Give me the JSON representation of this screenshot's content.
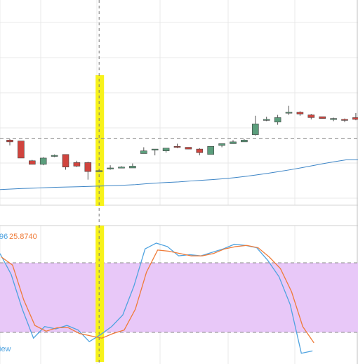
{
  "colors": {
    "bull": "#5b9e7c",
    "bear": "#d0443e",
    "ma": "#3d85c6",
    "k_line": "#4fa3e0",
    "d_line": "#ef7b38",
    "band_fill": "#e8c8f8",
    "highlight": "#f7f21a",
    "grid": "#e9e9e9",
    "dashed": "#8a8a8a"
  },
  "indicator": {
    "label_partial": "96",
    "label_value": "25.8740",
    "label_tail": "iew"
  },
  "chart_data": [
    {
      "type": "candlestick",
      "pane": "price",
      "title": "",
      "candles": [
        {
          "o": 130,
          "h": 131,
          "l": 124,
          "c": 128
        },
        {
          "o": 129,
          "h": 129,
          "l": 110,
          "c": 110
        },
        {
          "o": 107,
          "h": 108,
          "l": 103,
          "c": 103
        },
        {
          "o": 103,
          "h": 111,
          "l": 102,
          "c": 110
        },
        {
          "o": 113,
          "h": 114,
          "l": 111,
          "c": 113
        },
        {
          "o": 114,
          "h": 114,
          "l": 97,
          "c": 100
        },
        {
          "o": 105,
          "h": 107,
          "l": 100,
          "c": 101
        },
        {
          "o": 105,
          "h": 106,
          "l": 86,
          "c": 95
        },
        {
          "o": 95,
          "h": 97,
          "l": 95,
          "c": 96
        },
        {
          "o": 98,
          "h": 102,
          "l": 97,
          "c": 99
        },
        {
          "o": 99,
          "h": 101,
          "l": 99,
          "c": 100
        },
        {
          "o": 99,
          "h": 104,
          "l": 99,
          "c": 101
        },
        {
          "o": 115,
          "h": 122,
          "l": 115,
          "c": 118
        },
        {
          "o": 119,
          "h": 120,
          "l": 113,
          "c": 120
        },
        {
          "o": 118,
          "h": 121,
          "l": 116,
          "c": 121
        },
        {
          "o": 123,
          "h": 126,
          "l": 121,
          "c": 122
        },
        {
          "o": 122,
          "h": 122,
          "l": 120,
          "c": 120
        },
        {
          "o": 120,
          "h": 121,
          "l": 113,
          "c": 116
        },
        {
          "o": 114,
          "h": 123,
          "l": 114,
          "c": 123
        },
        {
          "o": 124,
          "h": 126,
          "l": 122,
          "c": 126
        },
        {
          "o": 126,
          "h": 130,
          "l": 126,
          "c": 128
        },
        {
          "o": 128,
          "h": 131,
          "l": 128,
          "c": 130
        },
        {
          "o": 136,
          "h": 157,
          "l": 135,
          "c": 148
        },
        {
          "o": 152,
          "h": 156,
          "l": 151,
          "c": 153
        },
        {
          "o": 150,
          "h": 158,
          "l": 147,
          "c": 155
        },
        {
          "o": 160,
          "h": 168,
          "l": 158,
          "c": 161
        },
        {
          "o": 161,
          "h": 162,
          "l": 157,
          "c": 159
        },
        {
          "o": 158,
          "h": 159,
          "l": 153,
          "c": 155
        },
        {
          "o": 156,
          "h": 156,
          "l": 154,
          "c": 154
        },
        {
          "o": 154,
          "h": 155,
          "l": 151,
          "c": 154
        },
        {
          "o": 153,
          "h": 154,
          "l": 150,
          "c": 152
        },
        {
          "o": 155,
          "h": 160,
          "l": 152,
          "c": 153
        }
      ],
      "moving_average": [
        75,
        75.6,
        76.1,
        76.5,
        77,
        77.5,
        77.8,
        78.1,
        78.5,
        78.9,
        79.3,
        79.8,
        80.3,
        81.3,
        82.2,
        82.9,
        83.5,
        84.4,
        85.2,
        86,
        87,
        88.2,
        89.6,
        91.3,
        93,
        95,
        97,
        99.2,
        101.5,
        103.9,
        106,
        108
      ],
      "reference_level": 131.5,
      "highlight_index": 8
    },
    {
      "type": "line",
      "pane": "oscillator",
      "title": "",
      "series": [
        {
          "values": [
            88,
            70,
            40,
            15,
            25,
            23,
            26,
            22,
            12,
            18,
            25,
            35,
            60,
            92,
            97,
            94,
            86,
            87,
            86,
            89,
            92,
            96,
            95,
            93,
            82,
            68,
            44,
            2,
            4
          ]
        },
        {
          "name": "25.8740",
          "values": [
            85,
            78,
            48,
            26,
            21,
            24,
            24,
            19,
            17,
            15,
            19,
            22,
            40,
            72,
            91,
            90,
            88,
            86,
            86,
            88,
            92,
            94,
            95,
            93,
            85,
            75,
            55,
            25,
            11
          ]
        }
      ],
      "ylim": [
        0,
        100
      ],
      "overbought": 80,
      "oversold": 20,
      "highlight_index": 8
    }
  ]
}
